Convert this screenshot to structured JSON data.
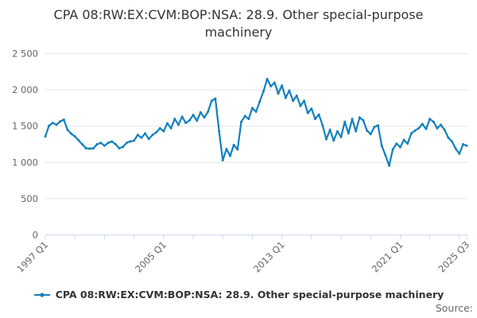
{
  "title": "CPA 08:RW:EX:CVM:BOP:NSA: 28.9. Other special-purpose machinery",
  "legend": {
    "label": "CPA 08:RW:EX:CVM:BOP:NSA: 28.9. Other special-purpose machinery"
  },
  "source_label": "Source:",
  "chart_data": {
    "type": "line",
    "title": "CPA 08:RW:EX:CVM:BOP:NSA: 28.9. Other special-purpose machinery",
    "frequency": "quarterly",
    "x_start": "1997 Q1",
    "x_end": "2025 Q3",
    "ylim": [
      0,
      2500
    ],
    "yticks": [
      0,
      500,
      1000,
      1500,
      2000,
      2500
    ],
    "ytick_labels": [
      "0",
      "500",
      "1 000",
      "1 500",
      "2 000",
      "2 500"
    ],
    "xtick_labels": [
      {
        "label": "1997 Q1",
        "q": 0
      },
      {
        "label": "2005 Q1",
        "q": 32
      },
      {
        "label": "2013 Q1",
        "q": 64
      },
      {
        "label": "2021 Q1",
        "q": 96
      },
      {
        "label": "2025 Q3",
        "q": 114
      }
    ],
    "minor_tick_every_quarters": 8,
    "grid": true,
    "legend_position": "bottom",
    "colors": {
      "line": "#1280be",
      "grid": "#e6e6e6",
      "axis": "#ccd6eb",
      "tick_text": "#666666",
      "title_text": "#333333"
    },
    "categories": [
      "1997 Q1",
      "1997 Q2",
      "1997 Q3",
      "1997 Q4",
      "1998 Q1",
      "1998 Q2",
      "1998 Q3",
      "1998 Q4",
      "1999 Q1",
      "1999 Q2",
      "1999 Q3",
      "1999 Q4",
      "2000 Q1",
      "2000 Q2",
      "2000 Q3",
      "2000 Q4",
      "2001 Q1",
      "2001 Q2",
      "2001 Q3",
      "2001 Q4",
      "2002 Q1",
      "2002 Q2",
      "2002 Q3",
      "2002 Q4",
      "2003 Q1",
      "2003 Q2",
      "2003 Q3",
      "2003 Q4",
      "2004 Q1",
      "2004 Q2",
      "2004 Q3",
      "2004 Q4",
      "2005 Q1",
      "2005 Q2",
      "2005 Q3",
      "2005 Q4",
      "2006 Q1",
      "2006 Q2",
      "2006 Q3",
      "2006 Q4",
      "2007 Q1",
      "2007 Q2",
      "2007 Q3",
      "2007 Q4",
      "2008 Q1",
      "2008 Q2",
      "2008 Q3",
      "2008 Q4",
      "2009 Q1",
      "2009 Q2",
      "2009 Q3",
      "2009 Q4",
      "2010 Q1",
      "2010 Q2",
      "2010 Q3",
      "2010 Q4",
      "2011 Q1",
      "2011 Q2",
      "2011 Q3",
      "2011 Q4",
      "2012 Q1",
      "2012 Q2",
      "2012 Q3",
      "2012 Q4",
      "2013 Q1",
      "2013 Q2",
      "2013 Q3",
      "2013 Q4",
      "2014 Q1",
      "2014 Q2",
      "2014 Q3",
      "2014 Q4",
      "2015 Q1",
      "2015 Q2",
      "2015 Q3",
      "2015 Q4",
      "2016 Q1",
      "2016 Q2",
      "2016 Q3",
      "2016 Q4",
      "2017 Q1",
      "2017 Q2",
      "2017 Q3",
      "2017 Q4",
      "2018 Q1",
      "2018 Q2",
      "2018 Q3",
      "2018 Q4",
      "2019 Q1",
      "2019 Q2",
      "2019 Q3",
      "2019 Q4",
      "2020 Q1",
      "2020 Q2",
      "2020 Q3",
      "2020 Q4",
      "2021 Q1",
      "2021 Q2",
      "2021 Q3",
      "2021 Q4",
      "2022 Q1",
      "2022 Q2",
      "2022 Q3",
      "2022 Q4",
      "2023 Q1",
      "2023 Q2",
      "2023 Q3",
      "2023 Q4",
      "2024 Q1",
      "2024 Q2",
      "2024 Q3",
      "2024 Q4",
      "2025 Q1",
      "2025 Q2",
      "2025 Q3"
    ],
    "values": [
      1360,
      1505,
      1545,
      1520,
      1565,
      1590,
      1450,
      1395,
      1360,
      1305,
      1250,
      1195,
      1190,
      1195,
      1250,
      1270,
      1230,
      1270,
      1290,
      1250,
      1195,
      1215,
      1270,
      1290,
      1300,
      1380,
      1340,
      1400,
      1325,
      1380,
      1415,
      1470,
      1430,
      1540,
      1470,
      1600,
      1520,
      1630,
      1545,
      1580,
      1655,
      1575,
      1690,
      1620,
      1700,
      1850,
      1880,
      1430,
      1030,
      1185,
      1090,
      1240,
      1180,
      1560,
      1640,
      1600,
      1750,
      1700,
      1840,
      1980,
      2150,
      2050,
      2100,
      1950,
      2060,
      1890,
      1990,
      1850,
      1920,
      1780,
      1850,
      1680,
      1740,
      1600,
      1660,
      1510,
      1320,
      1450,
      1300,
      1430,
      1350,
      1560,
      1400,
      1600,
      1430,
      1620,
      1580,
      1440,
      1390,
      1490,
      1510,
      1230,
      1100,
      955,
      1180,
      1260,
      1210,
      1310,
      1260,
      1400,
      1440,
      1470,
      1530,
      1460,
      1600,
      1560,
      1470,
      1520,
      1450,
      1340,
      1290,
      1190,
      1120,
      1250,
      1230
    ]
  }
}
